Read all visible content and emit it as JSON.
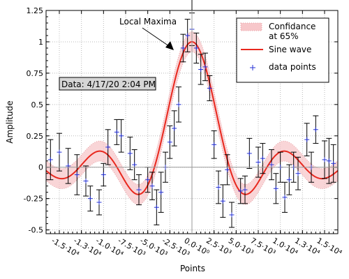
{
  "chart_data": {
    "type": "line",
    "title": "",
    "xlabel": "Points",
    "ylabel": "Amplitude",
    "xlim": [
      -16500,
      16500
    ],
    "ylim": [
      -0.53,
      1.25
    ],
    "grid": true,
    "x_ticks": [
      {
        "value": -15000,
        "label": "-1.5·10⁴"
      },
      {
        "value": -12500,
        "label": "-1.3·10⁴"
      },
      {
        "value": -10000,
        "label": "-1.0·10⁴"
      },
      {
        "value": -7500,
        "label": "-7.5·10³"
      },
      {
        "value": -5000,
        "label": "-5.0·10³"
      },
      {
        "value": -2500,
        "label": "-2.5·10³"
      },
      {
        "value": 0,
        "label": "0.0·10⁰"
      },
      {
        "value": 2500,
        "label": "2.5·10³"
      },
      {
        "value": 5000,
        "label": "5.0·10³"
      },
      {
        "value": 7500,
        "label": "7.5·10³"
      },
      {
        "value": 10000,
        "label": "1.0·10⁴"
      },
      {
        "value": 12500,
        "label": "1.3·10⁴"
      },
      {
        "value": 15000,
        "label": "1.5·10⁴"
      }
    ],
    "y_ticks": [
      {
        "value": -0.5,
        "label": "-0.5"
      },
      {
        "value": -0.25,
        "label": "-0.25"
      },
      {
        "value": 0,
        "label": "0"
      },
      {
        "value": 0.25,
        "label": "0.25"
      },
      {
        "value": 0.5,
        "label": "0.5"
      },
      {
        "value": 0.75,
        "label": "0.75"
      },
      {
        "value": 1,
        "label": "1"
      },
      {
        "value": 1.25,
        "label": "1.25"
      }
    ],
    "series": [
      {
        "name": "Sine wave",
        "kind": "line",
        "color": "#e8281e",
        "function": "sin(x/1350)/(x/1350)",
        "x_range": [
          -16500,
          16500
        ]
      },
      {
        "name": "Confidance at 65%",
        "kind": "band",
        "color": "#f7c7ca",
        "edge_color": "#e8a0a4",
        "half_width": 0.08
      },
      {
        "name": "data points",
        "kind": "scatter_errorbar",
        "marker": "+",
        "color": "#2431d6",
        "error_color": "#000000",
        "points": [
          {
            "x": -16000,
            "y": 0.06,
            "err": 0.16
          },
          {
            "x": -15000,
            "y": 0.12,
            "err": 0.15
          },
          {
            "x": -14000,
            "y": 0.01,
            "err": 0.14
          },
          {
            "x": -13000,
            "y": -0.06,
            "err": 0.16
          },
          {
            "x": -12000,
            "y": -0.11,
            "err": 0.12
          },
          {
            "x": -11500,
            "y": -0.25,
            "err": 0.1
          },
          {
            "x": -10500,
            "y": -0.28,
            "err": 0.1
          },
          {
            "x": -10000,
            "y": -0.06,
            "err": 0.09
          },
          {
            "x": -9500,
            "y": 0.16,
            "err": 0.14
          },
          {
            "x": -8500,
            "y": 0.28,
            "err": 0.1
          },
          {
            "x": -8000,
            "y": 0.25,
            "err": 0.13
          },
          {
            "x": -7000,
            "y": 0.11,
            "err": 0.13
          },
          {
            "x": -6500,
            "y": 0.02,
            "err": 0.12
          },
          {
            "x": -6000,
            "y": -0.18,
            "err": 0.12
          },
          {
            "x": -5000,
            "y": -0.1,
            "err": 0.1
          },
          {
            "x": -4500,
            "y": -0.15,
            "err": 0.11
          },
          {
            "x": -4000,
            "y": -0.32,
            "err": 0.14
          },
          {
            "x": -3500,
            "y": -0.2,
            "err": 0.16
          },
          {
            "x": -3000,
            "y": 0.0,
            "err": 0.12
          },
          {
            "x": -2500,
            "y": 0.2,
            "err": 0.13
          },
          {
            "x": -2000,
            "y": 0.31,
            "err": 0.14
          },
          {
            "x": -1500,
            "y": 0.5,
            "err": 0.14
          },
          {
            "x": -1000,
            "y": 0.95,
            "err": 0.11
          },
          {
            "x": -500,
            "y": 1.05,
            "err": 0.13
          },
          {
            "x": 0,
            "y": 1.1,
            "err": 0.13
          },
          {
            "x": 500,
            "y": 0.95,
            "err": 0.12
          },
          {
            "x": 1000,
            "y": 0.78,
            "err": 0.12
          },
          {
            "x": 1500,
            "y": 0.8,
            "err": 0.11
          },
          {
            "x": 2000,
            "y": 0.63,
            "err": 0.1
          },
          {
            "x": 2500,
            "y": 0.18,
            "err": 0.11
          },
          {
            "x": 3000,
            "y": -0.16,
            "err": 0.13
          },
          {
            "x": 3500,
            "y": -0.27,
            "err": 0.13
          },
          {
            "x": 4000,
            "y": -0.02,
            "err": 0.12
          },
          {
            "x": 4500,
            "y": -0.38,
            "err": 0.1
          },
          {
            "x": 5500,
            "y": -0.19,
            "err": 0.1
          },
          {
            "x": 6000,
            "y": -0.18,
            "err": 0.11
          },
          {
            "x": 6500,
            "y": 0.11,
            "err": 0.12
          },
          {
            "x": 7500,
            "y": 0.04,
            "err": 0.12
          },
          {
            "x": 8000,
            "y": 0.07,
            "err": 0.12
          },
          {
            "x": 9000,
            "y": 0.02,
            "err": 0.12
          },
          {
            "x": 9500,
            "y": -0.17,
            "err": 0.12
          },
          {
            "x": 10000,
            "y": 0.0,
            "err": 0.12
          },
          {
            "x": 10500,
            "y": -0.24,
            "err": 0.12
          },
          {
            "x": 11000,
            "y": -0.1,
            "err": 0.12
          },
          {
            "x": 11500,
            "y": 0.0,
            "err": 0.12
          },
          {
            "x": 12000,
            "y": -0.05,
            "err": 0.13
          },
          {
            "x": 13000,
            "y": 0.22,
            "err": 0.13
          },
          {
            "x": 13500,
            "y": 0.0,
            "err": 0.12
          },
          {
            "x": 14000,
            "y": 0.3,
            "err": 0.11
          },
          {
            "x": 15000,
            "y": 0.06,
            "err": 0.15
          },
          {
            "x": 15500,
            "y": 0.05,
            "err": 0.18
          },
          {
            "x": 16000,
            "y": 0.03,
            "err": 0.15
          }
        ]
      }
    ],
    "legend": {
      "position": "top-right",
      "entries": [
        {
          "label_line1": "Confidance",
          "label_line2": "at 65%",
          "kind": "band"
        },
        {
          "label_line1": "Sine wave",
          "label_line2": "",
          "kind": "line"
        },
        {
          "label_line1": "data points",
          "label_line2": "",
          "kind": "marker"
        }
      ]
    },
    "annotations": [
      {
        "text": "Local Maxima",
        "arrow_target": {
          "x": -2000,
          "y": 0.93
        }
      },
      {
        "text": "Data: 4/17/20 2:04 PM",
        "boxed": true
      }
    ]
  }
}
